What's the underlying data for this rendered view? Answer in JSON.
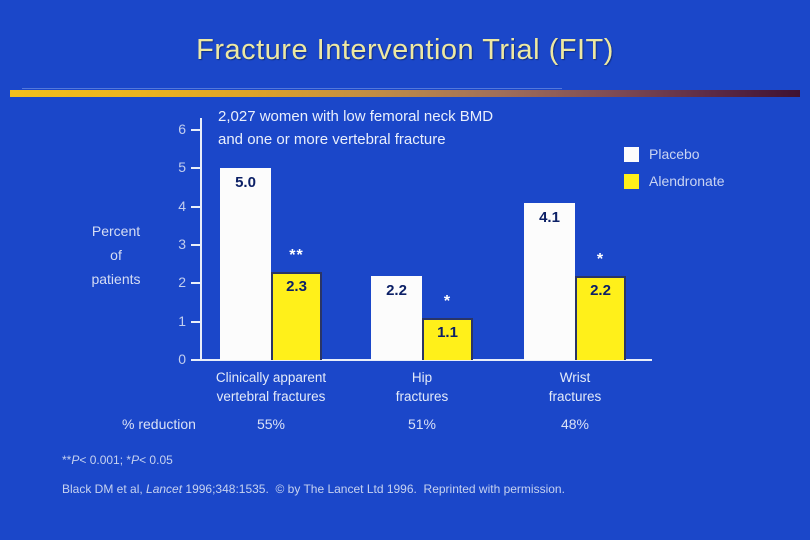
{
  "slide": {
    "title": "Fracture Intervention Trial (FIT)",
    "subtitle_lines": [
      "2,027 women with low femoral neck BMD",
      "and one or more vertebral fracture"
    ],
    "ylabel_lines": [
      "Percent",
      "of",
      "patients"
    ]
  },
  "legend": {
    "position": "top-right",
    "items": [
      {
        "label": "Placebo",
        "color": "#FCFCFC"
      },
      {
        "label": "Alendronate",
        "color": "#FFF01A"
      }
    ]
  },
  "chart_data": {
    "type": "bar",
    "title": "2,027 women with low femoral neck BMD and one or more vertebral fracture",
    "xlabel": "",
    "ylabel": "Percent of patients",
    "ylim": [
      0,
      6
    ],
    "yticks": [
      0,
      1,
      2,
      3,
      4,
      5,
      6
    ],
    "grid": false,
    "legend_position": "top-right",
    "categories": [
      [
        "Clinically apparent",
        "vertebral fractures"
      ],
      [
        "Hip",
        "fractures"
      ],
      [
        "Wrist",
        "fractures"
      ]
    ],
    "series": [
      {
        "name": "Placebo",
        "color": "#FCFCFC",
        "values": [
          5.0,
          2.2,
          4.1
        ]
      },
      {
        "name": "Alendronate",
        "color": "#FFF01A",
        "values": [
          2.3,
          1.1,
          2.2
        ]
      }
    ],
    "significance_markers": [
      "**",
      "*",
      "*"
    ],
    "pct_reduction_label": "% reduction",
    "pct_reduction": [
      "55%",
      "51%",
      "48%"
    ]
  },
  "footnotes": {
    "significance_segments": [
      {
        "t": "**"
      },
      {
        "t": "P",
        "i": true
      },
      {
        "t": "< 0.001; *"
      },
      {
        "t": "P",
        "i": true
      },
      {
        "t": "< 0.05"
      }
    ],
    "citation_segments": [
      {
        "t": "Black DM et al, "
      },
      {
        "t": "Lancet",
        "i": true
      },
      {
        "t": " 1996;348:1535.  © by The Lancet Ltd 1996.  Reprinted with permission."
      }
    ]
  },
  "colors": {
    "background": "#1B47C9",
    "title_text": "#EDE8A2",
    "accent_gradient_left": "#F2C01C",
    "accent_gradient_right": "#3F1232",
    "bar_placebo": "#FCFCFC",
    "bar_alendronate": "#FFF01A",
    "bar_alendronate_border": "#2A3566",
    "bar_value_text": "#0C2066",
    "axis": "#E9EEF9",
    "pale_text": "#C6D2F0",
    "bright_text": "#E9EFFC"
  }
}
